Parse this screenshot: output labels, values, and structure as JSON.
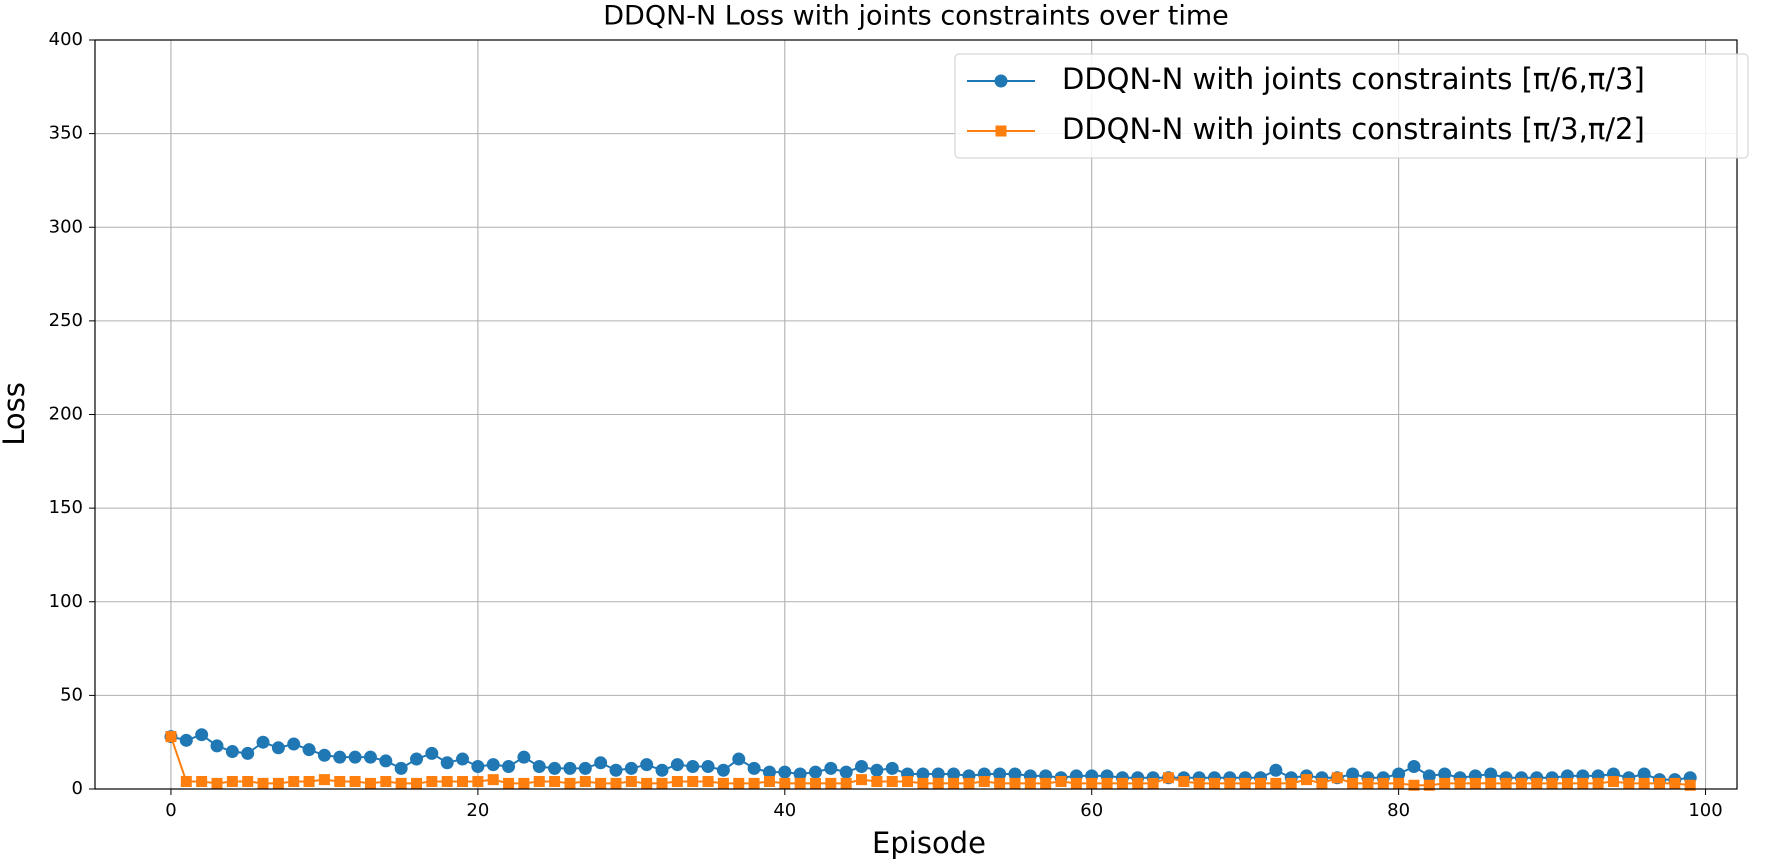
{
  "chart_data": {
    "type": "line",
    "title": "DDQN-N Loss with joints constraints over time",
    "x_label": "Episode",
    "y_label": "Loss",
    "x": [
      0,
      1,
      2,
      3,
      4,
      5,
      6,
      7,
      8,
      9,
      10,
      11,
      12,
      13,
      14,
      15,
      16,
      17,
      18,
      19,
      20,
      21,
      22,
      23,
      24,
      25,
      26,
      27,
      28,
      29,
      30,
      31,
      32,
      33,
      34,
      35,
      36,
      37,
      38,
      39,
      40,
      41,
      42,
      43,
      44,
      45,
      46,
      47,
      48,
      49,
      50,
      51,
      52,
      53,
      54,
      55,
      56,
      57,
      58,
      59,
      60,
      61,
      62,
      63,
      64,
      65,
      66,
      67,
      68,
      69,
      70,
      71,
      72,
      73,
      74,
      75,
      76,
      77,
      78,
      79,
      80,
      81,
      82,
      83,
      84,
      85,
      86,
      87,
      88,
      89,
      90,
      91,
      92,
      93,
      94,
      95,
      96,
      97,
      98,
      99
    ],
    "series": [
      {
        "name": "DDQN-N with joints constraints [π/6,π/3]",
        "color": "#1f77b4",
        "marker": "circle",
        "values": [
          28,
          26,
          29,
          23,
          20,
          19,
          25,
          22,
          24,
          21,
          18,
          17,
          17,
          17,
          15,
          11,
          16,
          19,
          14,
          16,
          12,
          13,
          12,
          17,
          12,
          11,
          11,
          11,
          14,
          10,
          11,
          13,
          10,
          13,
          12,
          12,
          10,
          16,
          11,
          9,
          9,
          8,
          9,
          11,
          9,
          12,
          10,
          11,
          8,
          8,
          8,
          8,
          7,
          8,
          8,
          8,
          7,
          7,
          6,
          7,
          7,
          7,
          6,
          6,
          6,
          6,
          6,
          6,
          6,
          6,
          6,
          6,
          10,
          6,
          7,
          6,
          6,
          8,
          6,
          6,
          8,
          12,
          7,
          8,
          6,
          7,
          8,
          6,
          6,
          6,
          6,
          7,
          7,
          7,
          8,
          6,
          8,
          5,
          5,
          6
        ]
      },
      {
        "name": "DDQN-N with joints constraints [π/3,π/2]",
        "color": "#ff7f0e",
        "marker": "square",
        "values": [
          28,
          4,
          4,
          3,
          4,
          4,
          3,
          3,
          4,
          4,
          5,
          4,
          4,
          3,
          4,
          3,
          3,
          4,
          4,
          4,
          4,
          5,
          3,
          3,
          4,
          4,
          3,
          4,
          3,
          3,
          4,
          3,
          3,
          4,
          4,
          4,
          3,
          3,
          3,
          4,
          3,
          3,
          3,
          3,
          3,
          5,
          4,
          4,
          4,
          3,
          3,
          3,
          3,
          4,
          3,
          3,
          3,
          3,
          4,
          3,
          3,
          3,
          3,
          3,
          3,
          6,
          4,
          3,
          3,
          3,
          3,
          3,
          3,
          3,
          5,
          3,
          6,
          3,
          3,
          3,
          3,
          2,
          2,
          3,
          3,
          3,
          3,
          3,
          3,
          3,
          3,
          3,
          3,
          3,
          4,
          3,
          3,
          3,
          3,
          2
        ]
      }
    ],
    "xlim": [
      -4.95,
      102.05
    ],
    "xticks": [
      0,
      20,
      40,
      60,
      80,
      100
    ],
    "ylim": [
      0,
      400
    ],
    "yticks": [
      0,
      50,
      100,
      150,
      200,
      250,
      300,
      350,
      400
    ],
    "grid": true,
    "legend": "upper right"
  }
}
